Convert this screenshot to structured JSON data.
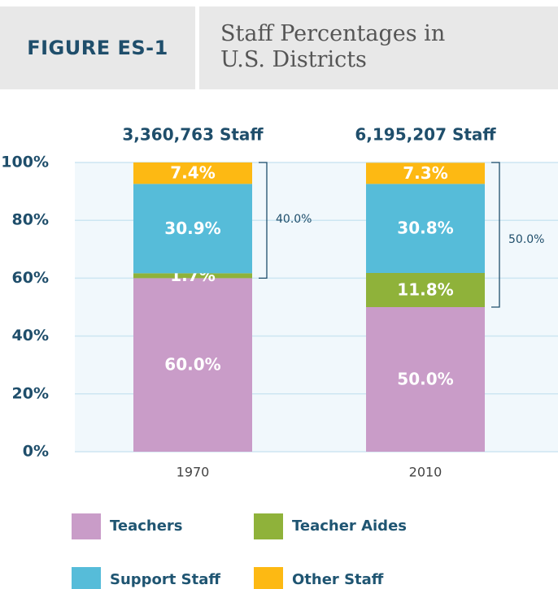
{
  "chart_data": {
    "type": "stacked_bar",
    "figure_label": "FIGURE ES-1",
    "title": "Staff Percentages in U.S. Districts",
    "categories": [
      "1970",
      "2010"
    ],
    "bar_totals": [
      "3,360,763 Staff",
      "6,195,207 Staff"
    ],
    "series": [
      {
        "name": "Teachers",
        "color": "#c99cc8",
        "values": [
          60.0,
          50.0
        ],
        "value_labels": [
          "60.0%",
          "50.0%"
        ]
      },
      {
        "name": "Teacher Aides",
        "color": "#8fb23a",
        "values": [
          1.7,
          11.8
        ],
        "value_labels": [
          "1.7%",
          "11.8%"
        ]
      },
      {
        "name": "Support Staff",
        "color": "#56bcd9",
        "values": [
          30.9,
          30.8
        ],
        "value_labels": [
          "30.9%",
          "30.8%"
        ]
      },
      {
        "name": "Other Staff",
        "color": "#fdb913",
        "values": [
          7.4,
          7.3
        ],
        "value_labels": [
          "7.4%",
          "7.3%"
        ]
      }
    ],
    "brackets": [
      {
        "value": 40.0,
        "label": "40.0%"
      },
      {
        "value": 50.0,
        "label": "50.0%"
      }
    ],
    "ylim": [
      0,
      100
    ],
    "yticks": [
      {
        "value": 0,
        "label": "0%"
      },
      {
        "value": 20,
        "label": "20%"
      },
      {
        "value": 40,
        "label": "40%"
      },
      {
        "value": 60,
        "label": "60%"
      },
      {
        "value": 80,
        "label": "80%"
      },
      {
        "value": 100,
        "label": "100%"
      }
    ],
    "grid": true
  }
}
